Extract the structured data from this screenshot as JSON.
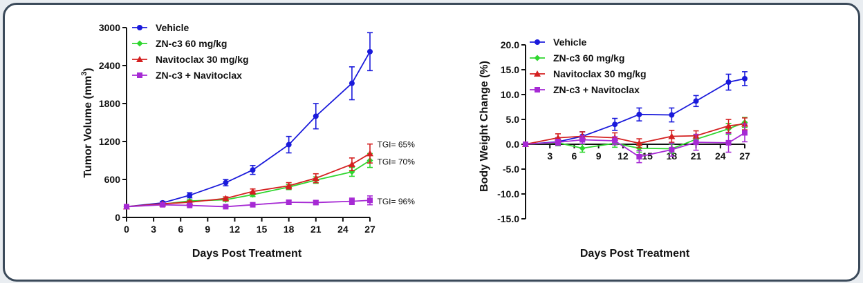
{
  "chart_data": [
    {
      "type": "line",
      "xlabel": "Days Post Treatment",
      "ylabel": "Tumor Volume (mm",
      "ylabel_sup": "3",
      "ylabel_end": ")",
      "xlim": [
        0,
        27
      ],
      "ylim": [
        0,
        3000
      ],
      "xticks": [
        0,
        3,
        6,
        9,
        12,
        15,
        18,
        21,
        24,
        27
      ],
      "yticks": [
        0,
        600,
        1200,
        1800,
        2400,
        3000
      ],
      "legend_position": "top-left",
      "series": [
        {
          "name": "Vehicle",
          "color": "#1a1adb",
          "marker": "circle",
          "x": [
            0,
            4,
            7,
            11,
            14,
            18,
            21,
            25,
            27
          ],
          "y": [
            170,
            230,
            350,
            550,
            750,
            1150,
            1600,
            2120,
            2620
          ],
          "err": [
            20,
            25,
            40,
            50,
            70,
            130,
            200,
            260,
            300
          ]
        },
        {
          "name": "ZN-c3 60 mg/kg",
          "color": "#2ed62e",
          "marker": "diamond",
          "x": [
            0,
            4,
            7,
            11,
            14,
            18,
            21,
            25,
            27
          ],
          "y": [
            170,
            210,
            260,
            280,
            360,
            480,
            590,
            720,
            900
          ],
          "err": [
            15,
            15,
            20,
            25,
            30,
            40,
            50,
            70,
            110
          ]
        },
        {
          "name": "Navitoclax 30 mg/kg",
          "color": "#d42020",
          "marker": "triangle",
          "x": [
            0,
            4,
            7,
            11,
            14,
            18,
            21,
            25,
            27
          ],
          "y": [
            170,
            215,
            240,
            300,
            410,
            500,
            620,
            840,
            1010
          ],
          "err": [
            15,
            15,
            20,
            25,
            40,
            50,
            70,
            100,
            150
          ]
        },
        {
          "name": "ZN-c3 + Navitoclax",
          "color": "#a62ad4",
          "marker": "square",
          "x": [
            0,
            4,
            7,
            11,
            14,
            18,
            21,
            25,
            27
          ],
          "y": [
            170,
            200,
            190,
            170,
            200,
            240,
            235,
            255,
            270
          ],
          "err": [
            15,
            15,
            15,
            15,
            20,
            30,
            30,
            50,
            70
          ]
        }
      ],
      "annotations": [
        {
          "text": "TGI= 65%",
          "x": 27.5,
          "y": 1150
        },
        {
          "text": "TGI= 70%",
          "x": 27.5,
          "y": 880
        },
        {
          "text": "TGI= 96%",
          "x": 27.5,
          "y": 250
        }
      ]
    },
    {
      "type": "line",
      "xlabel": "Days Post Treatment",
      "ylabel": "Body Weight Change (%)",
      "xlim": [
        0,
        27
      ],
      "ylim": [
        -15,
        20
      ],
      "xticks": [
        3,
        6,
        9,
        12,
        15,
        18,
        21,
        24,
        27
      ],
      "yticks": [
        -15,
        -10,
        -5,
        0,
        5,
        10,
        15,
        20
      ],
      "ytick_labels": [
        "-15.0",
        "-10.0",
        "-5.0",
        "0.0",
        "5.0",
        "10.0",
        "15.0",
        "20.0"
      ],
      "legend_position": "top-left",
      "series": [
        {
          "name": "Vehicle",
          "color": "#1a1adb",
          "marker": "circle",
          "x": [
            0,
            4,
            7,
            11,
            14,
            18,
            21,
            25,
            27
          ],
          "y": [
            0,
            0.5,
            1.6,
            4.0,
            6.0,
            5.9,
            8.7,
            12.5,
            13.2
          ],
          "err": [
            0.2,
            0.8,
            0.9,
            1.2,
            1.3,
            1.4,
            1.1,
            1.6,
            1.4
          ]
        },
        {
          "name": "ZN-c3 60 mg/kg",
          "color": "#2ed62e",
          "marker": "diamond",
          "x": [
            0,
            4,
            7,
            11,
            14,
            18,
            21,
            25,
            27
          ],
          "y": [
            0,
            0.3,
            -0.8,
            0.2,
            -0.8,
            -0.9,
            1.0,
            3.1,
            4.4
          ],
          "err": [
            0.2,
            0.6,
            0.8,
            0.8,
            0.8,
            0.9,
            0.9,
            1.1,
            1.0
          ]
        },
        {
          "name": "Navitoclax 30 mg/kg",
          "color": "#d42020",
          "marker": "triangle",
          "x": [
            0,
            4,
            7,
            11,
            14,
            18,
            21,
            25,
            27
          ],
          "y": [
            0,
            1.3,
            1.6,
            1.3,
            0.2,
            1.6,
            1.7,
            3.7,
            4.1
          ],
          "err": [
            0.2,
            0.8,
            0.9,
            1.0,
            0.9,
            1.2,
            1.0,
            1.3,
            1.2
          ]
        },
        {
          "name": "ZN-c3 + Navitoclax",
          "color": "#a62ad4",
          "marker": "square",
          "x": [
            0,
            4,
            7,
            11,
            14,
            18,
            21,
            25,
            27
          ],
          "y": [
            0,
            0.4,
            0.9,
            0.7,
            -2.5,
            -1.1,
            0.4,
            0.3,
            2.3
          ],
          "err": [
            0.2,
            0.6,
            0.8,
            0.8,
            1.2,
            1.3,
            1.6,
            1.9,
            1.8
          ]
        }
      ]
    }
  ]
}
